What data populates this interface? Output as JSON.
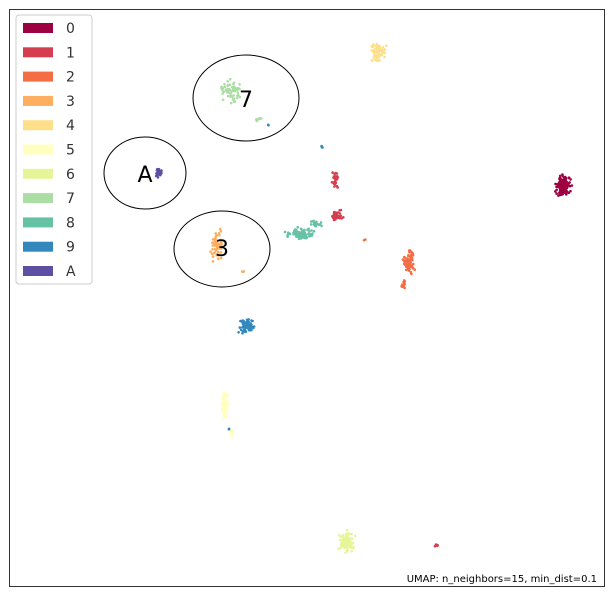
{
  "chart_data": {
    "type": "scatter",
    "title": "",
    "xlabel": "",
    "ylabel": "",
    "grid": false,
    "legend_position": "top-left",
    "footer": "UMAP: n_neighbors=15, min_dist=0.1",
    "series": [
      {
        "name": "0",
        "color": "#9e0142"
      },
      {
        "name": "1",
        "color": "#d53e4f"
      },
      {
        "name": "2",
        "color": "#f46d43"
      },
      {
        "name": "3",
        "color": "#fdae61"
      },
      {
        "name": "4",
        "color": "#fee08b"
      },
      {
        "name": "5",
        "color": "#ffffbf"
      },
      {
        "name": "6",
        "color": "#e6f598"
      },
      {
        "name": "7",
        "color": "#abdda4"
      },
      {
        "name": "8",
        "color": "#66c2a5"
      },
      {
        "name": "9",
        "color": "#3288bd"
      },
      {
        "name": "A",
        "color": "#5e4fa2"
      }
    ],
    "annotations": [
      {
        "label": "7"
      },
      {
        "label": "A"
      },
      {
        "label": "3"
      }
    ]
  }
}
